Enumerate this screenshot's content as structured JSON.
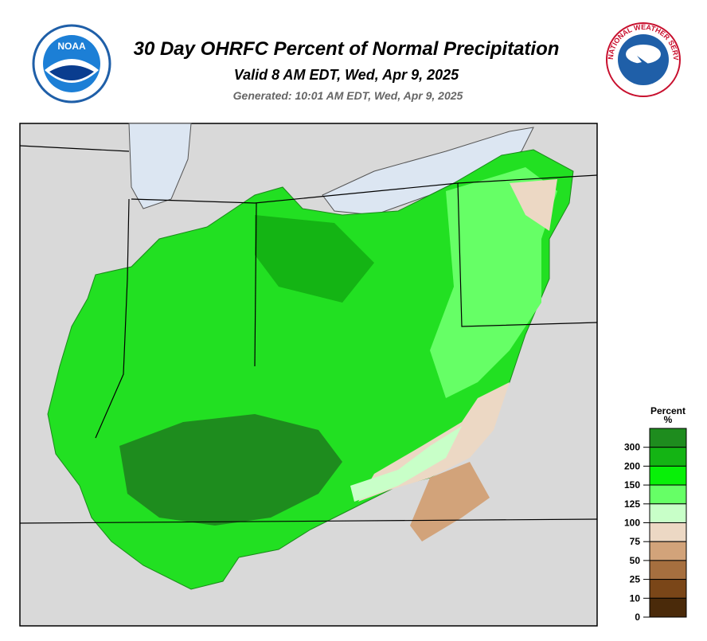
{
  "header": {
    "title": "30 Day OHRFC Percent of Normal Precipitation",
    "subtitle": "Valid 8 AM EDT, Wed, Apr 9, 2025",
    "generated": "Generated: 10:01 AM EDT, Wed, Apr 9, 2025"
  },
  "logos": {
    "noaa": "NOAA",
    "nws": "NATIONAL WEATHER SERVICE"
  },
  "legend": {
    "title": "Percent",
    "unit": "%",
    "labels": [
      "300",
      "200",
      "150",
      "125",
      "100",
      "75",
      "50",
      "25",
      "10",
      "0"
    ],
    "colors": [
      "#1e8c1e",
      "#14b414",
      "#08f008",
      "#66ff66",
      "#c8ffc8",
      "#ecd8c4",
      "#d2a37a",
      "#a66f3f",
      "#7a4618",
      "#4a2a0a"
    ]
  }
}
